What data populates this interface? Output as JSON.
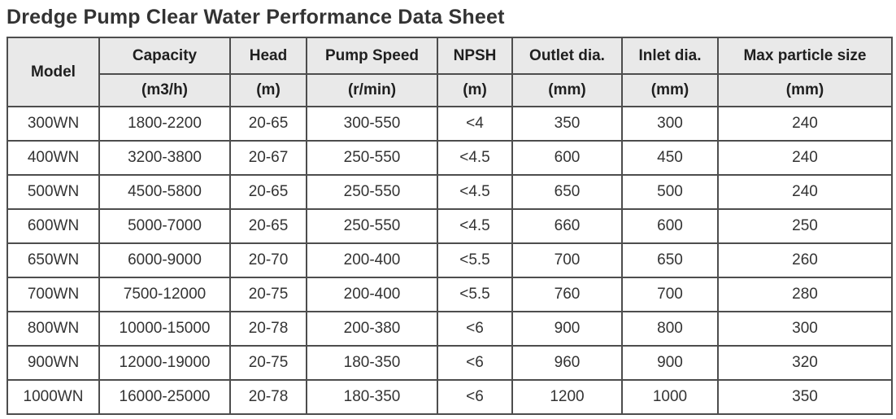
{
  "title": "Dredge Pump Clear Water Performance Data Sheet",
  "colors": {
    "header_bg": "#e9e9e9",
    "border": "#4d4d4d",
    "title_text": "#333333",
    "cell_text": "#333333"
  },
  "table": {
    "columns": [
      {
        "label": "Model",
        "unit": ""
      },
      {
        "label": "Capacity",
        "unit": "(m3/h)"
      },
      {
        "label": "Head",
        "unit": "(m)"
      },
      {
        "label": "Pump Speed",
        "unit": "(r/min)"
      },
      {
        "label": "NPSH",
        "unit": "(m)"
      },
      {
        "label": "Outlet dia.",
        "unit": "(mm)"
      },
      {
        "label": "Inlet dia.",
        "unit": "(mm)"
      },
      {
        "label": "Max particle size",
        "unit": "(mm)"
      }
    ],
    "rows": [
      [
        "300WN",
        "1800-2200",
        "20-65",
        "300-550",
        "<4",
        "350",
        "300",
        "240"
      ],
      [
        "400WN",
        "3200-3800",
        "20-67",
        "250-550",
        "<4.5",
        "600",
        "450",
        "240"
      ],
      [
        "500WN",
        "4500-5800",
        "20-65",
        "250-550",
        "<4.5",
        "650",
        "500",
        "240"
      ],
      [
        "600WN",
        "5000-7000",
        "20-65",
        "250-550",
        "<4.5",
        "660",
        "600",
        "250"
      ],
      [
        "650WN",
        "6000-9000",
        "20-70",
        "200-400",
        "<5.5",
        "700",
        "650",
        "260"
      ],
      [
        "700WN",
        "7500-12000",
        "20-75",
        "200-400",
        "<5.5",
        "760",
        "700",
        "280"
      ],
      [
        "800WN",
        "10000-15000",
        "20-78",
        "200-380",
        "<6",
        "900",
        "800",
        "300"
      ],
      [
        "900WN",
        "12000-19000",
        "20-75",
        "180-350",
        "<6",
        "960",
        "900",
        "320"
      ],
      [
        "1000WN",
        "16000-25000",
        "20-78",
        "180-350",
        "<6",
        "1200",
        "1000",
        "350"
      ]
    ]
  }
}
